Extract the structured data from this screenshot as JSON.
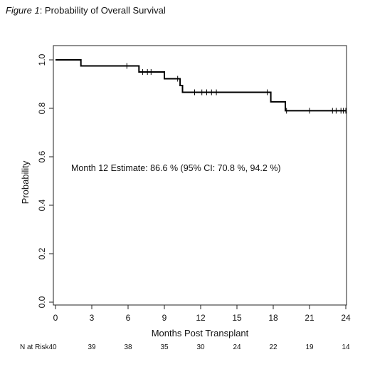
{
  "figure": {
    "label": "Figure 1",
    "title": ": Probability of Overall Survival"
  },
  "chart_data": {
    "type": "line",
    "subtype": "kaplan-meier-step",
    "xlabel": "Months Post Transplant",
    "ylabel": "Probability",
    "xlim": [
      0,
      24
    ],
    "ylim": [
      0,
      1
    ],
    "xticks": [
      0,
      3,
      6,
      9,
      12,
      15,
      18,
      21,
      24
    ],
    "yticks": [
      "0.0",
      "0.2",
      "0.4",
      "0.6",
      "0.8",
      "1.0"
    ],
    "grid": false,
    "annotation": "Month 12 Estimate: 86.6 % (95% CI: 70.8 %, 94.2 %)",
    "series": [
      {
        "steps": [
          [
            0,
            1.0
          ],
          [
            2.1,
            0.975
          ],
          [
            6.9,
            0.95
          ],
          [
            9.0,
            0.922
          ],
          [
            10.3,
            0.894
          ],
          [
            10.5,
            0.866
          ],
          [
            17.8,
            0.827
          ],
          [
            19.0,
            0.79
          ],
          [
            24.0,
            0.79
          ]
        ],
        "censored": [
          [
            5.9,
            0.975
          ],
          [
            7.2,
            0.95
          ],
          [
            7.6,
            0.95
          ],
          [
            7.9,
            0.95
          ],
          [
            10.1,
            0.922
          ],
          [
            11.5,
            0.866
          ],
          [
            12.1,
            0.866
          ],
          [
            12.5,
            0.866
          ],
          [
            12.9,
            0.866
          ],
          [
            13.3,
            0.866
          ],
          [
            17.5,
            0.866
          ],
          [
            19.1,
            0.79
          ],
          [
            21.0,
            0.79
          ],
          [
            22.9,
            0.79
          ],
          [
            23.2,
            0.79
          ],
          [
            23.6,
            0.79
          ],
          [
            23.8,
            0.79
          ],
          [
            24.0,
            0.79
          ]
        ]
      }
    ],
    "at_risk": {
      "label": "N at Risk",
      "counts": [
        "40",
        "39",
        "38",
        "35",
        "30",
        "24",
        "22",
        "19",
        "14"
      ]
    }
  }
}
